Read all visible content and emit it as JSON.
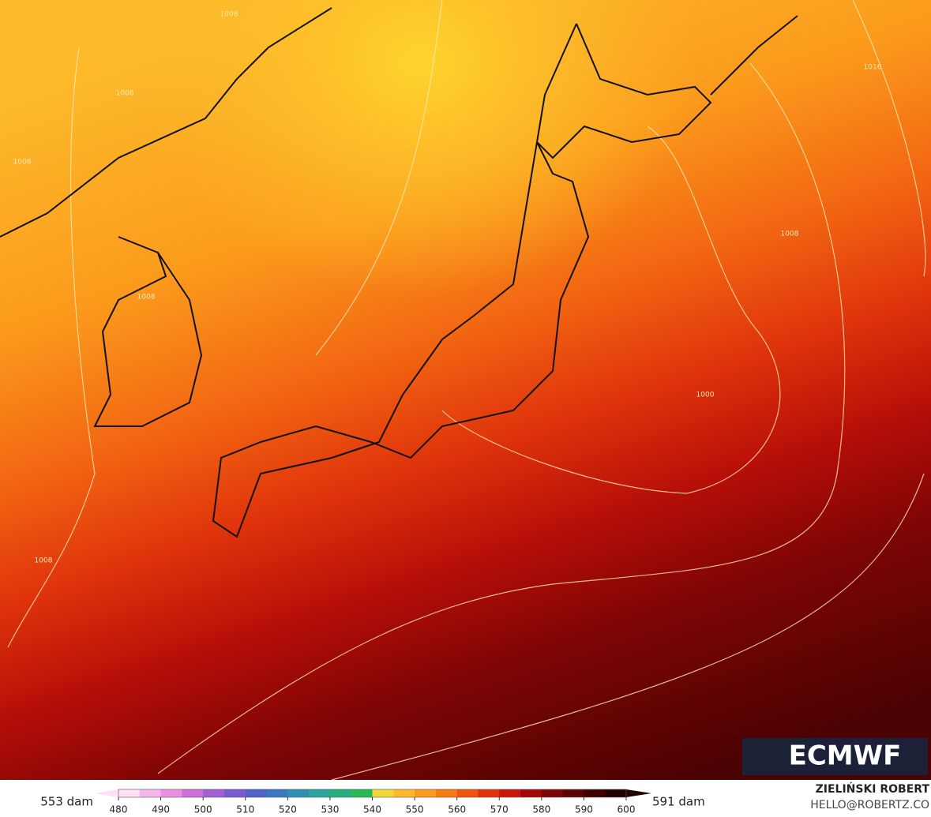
{
  "map": {
    "contour_labels": [
      "1008",
      "1008",
      "1008",
      "1008",
      "1000",
      "1008",
      "1016",
      "1008"
    ]
  },
  "legend": {
    "min_label": "553 dam",
    "max_label": "591 dam",
    "ticks": [
      480,
      490,
      500,
      510,
      520,
      530,
      540,
      550,
      560,
      570,
      580,
      590,
      600
    ],
    "colors": [
      "#fde0f4",
      "#f6b6ec",
      "#eb8fe4",
      "#d06fd8",
      "#a45fd2",
      "#7a5bd0",
      "#4f63c8",
      "#3a78c0",
      "#2e8fb4",
      "#2aa5a0",
      "#22b07c",
      "#27b956",
      "#f2d73a",
      "#fdb92a",
      "#fb9a1c",
      "#f77a12",
      "#ef560d",
      "#df330b",
      "#c81709",
      "#a20808",
      "#7e0505",
      "#5c0303",
      "#3e0202",
      "#220101"
    ]
  },
  "branding": {
    "logo": "ECMWF",
    "author": "ZIELIŃSKI ROBERT",
    "contact": "HELLO@ROBERTZ.CO"
  }
}
